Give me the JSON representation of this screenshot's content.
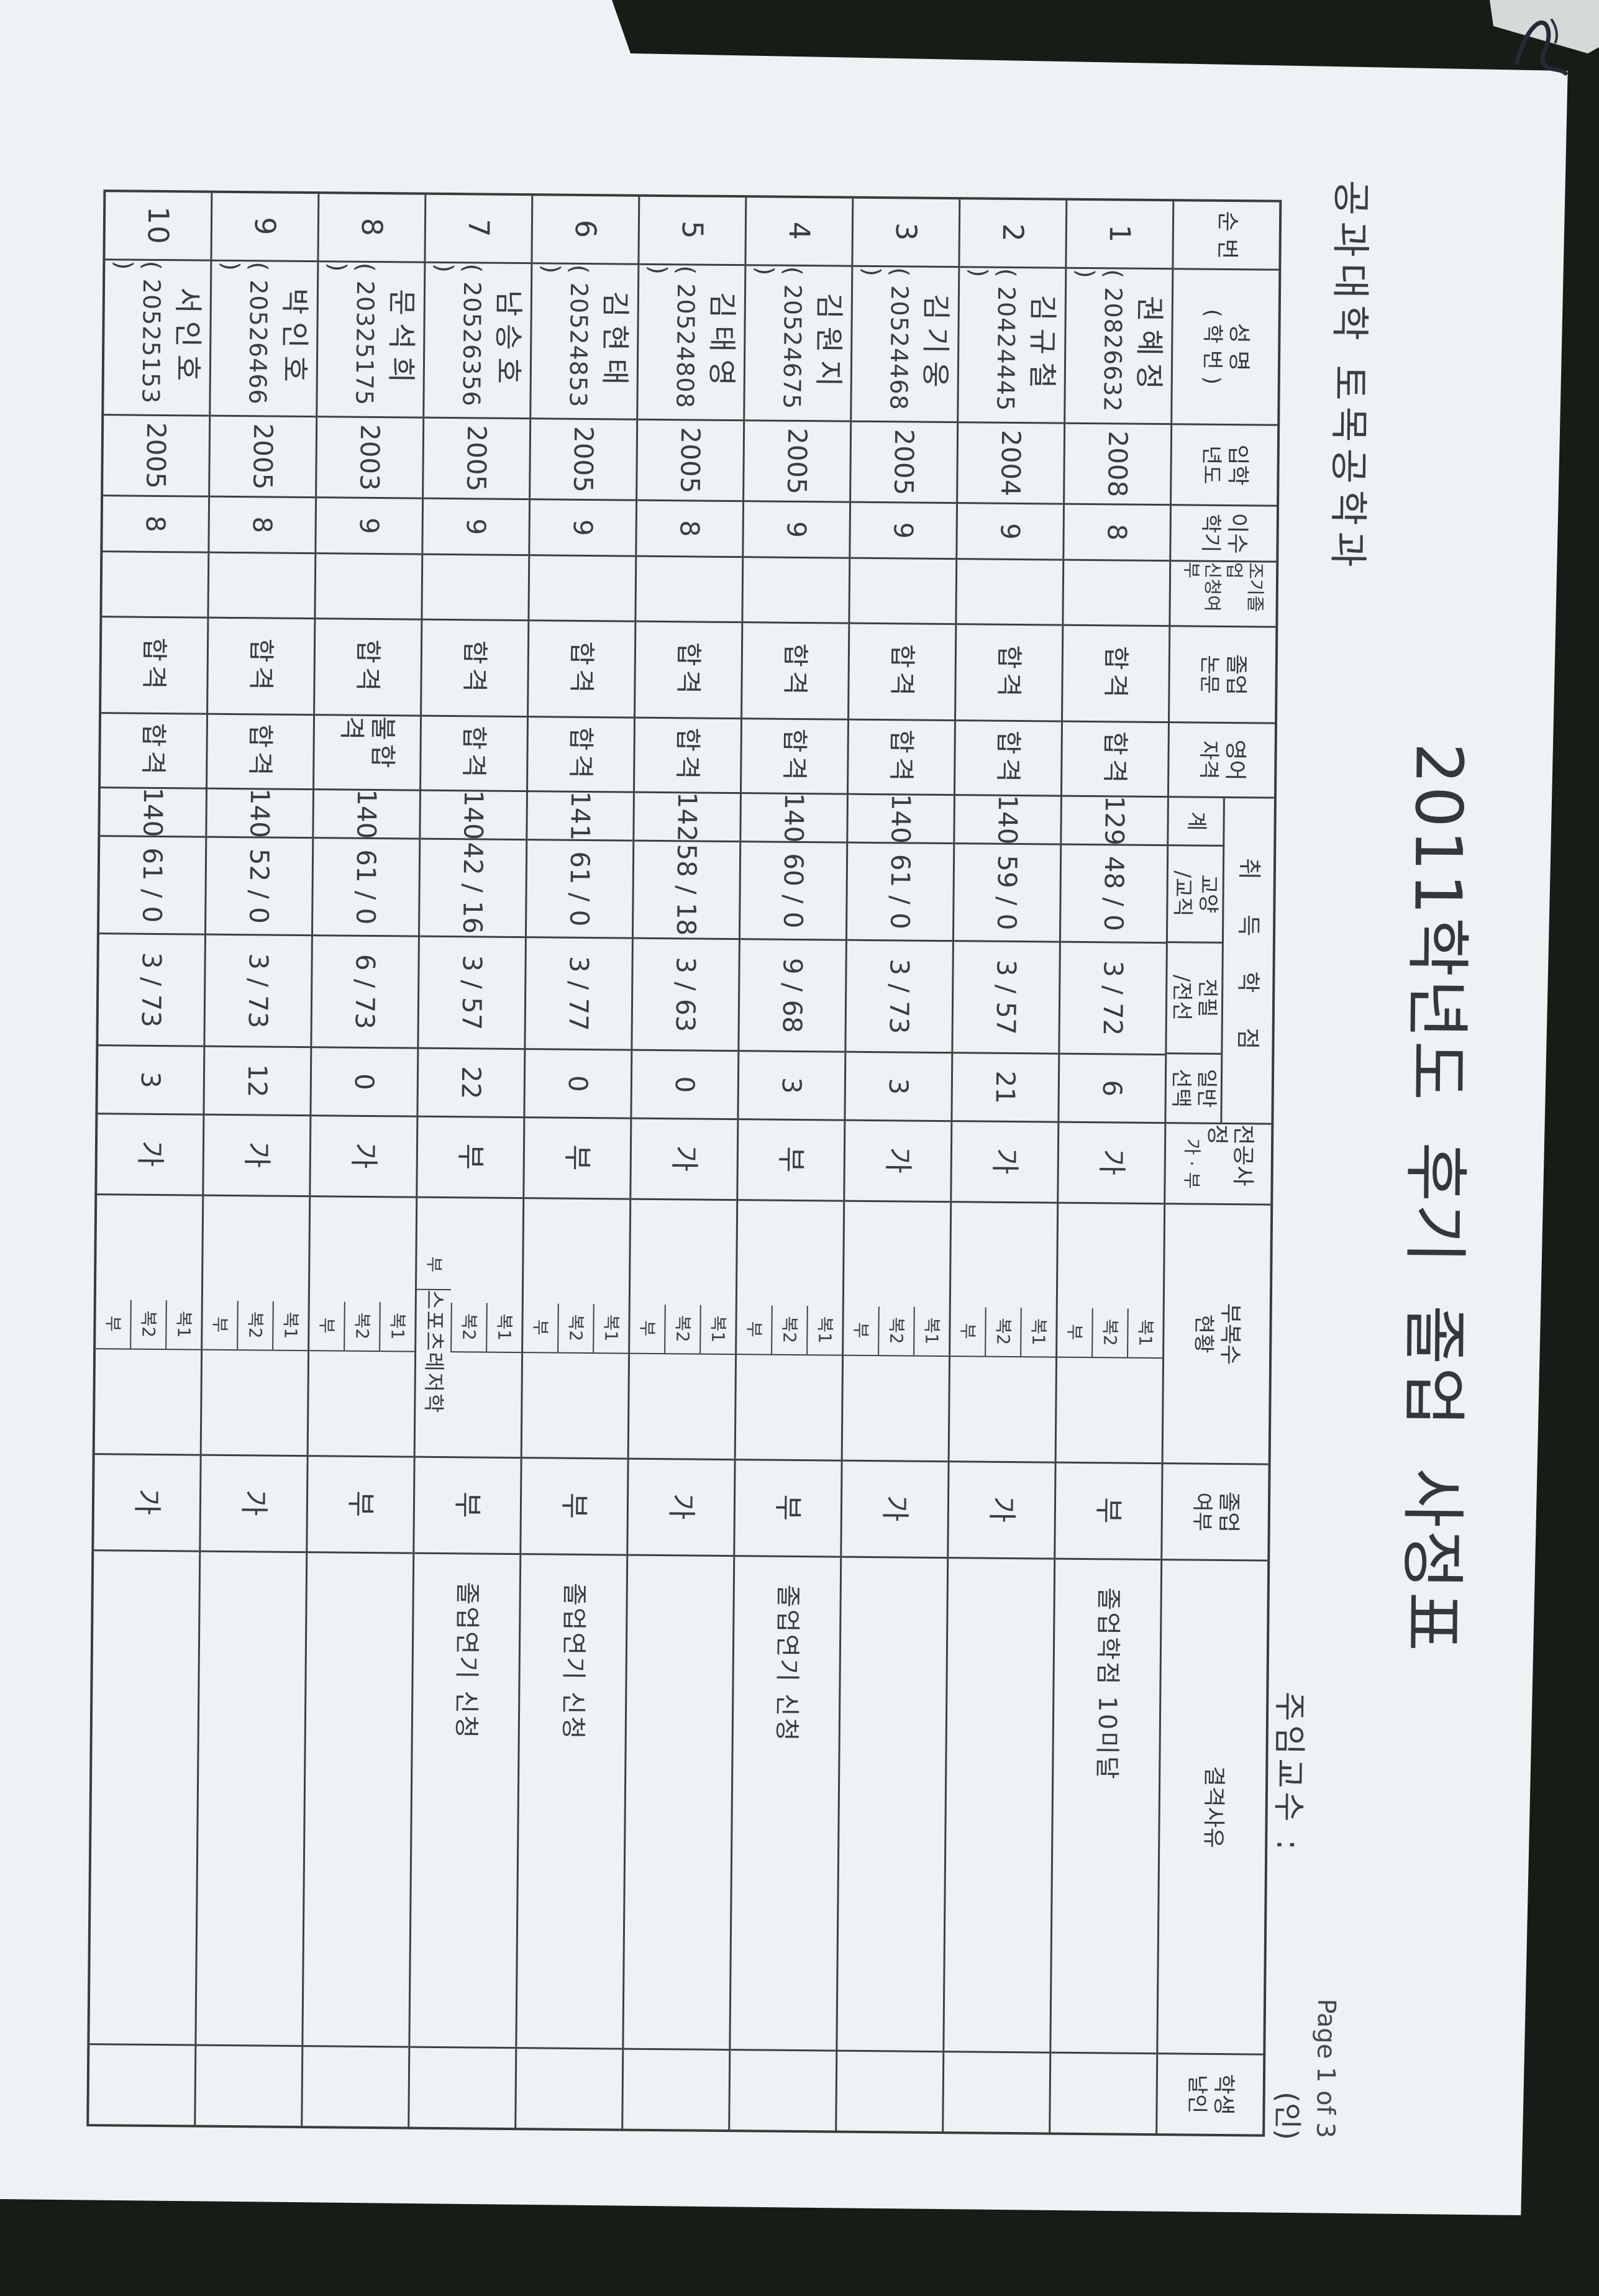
{
  "header": {
    "department": "공과대학  토목공학과",
    "title": "2011학년도 후기  졸업 사정표",
    "advisor_label": "주임교수 :",
    "seal_label": "(인)",
    "page_indicator": "Page 1 of 3"
  },
  "table": {
    "credit_group_label": "취 득 학 점",
    "minor_sub_labels": [
      "복1",
      "복2",
      "부"
    ],
    "columns": [
      {
        "id": "no",
        "label": "순 번"
      },
      {
        "id": "name",
        "label": "성 명",
        "label2": "( 학 번 )"
      },
      {
        "id": "admission_year",
        "label": "입학",
        "label2": "년도"
      },
      {
        "id": "semesters",
        "label": "이수",
        "label2": "학기"
      },
      {
        "id": "early_grad",
        "label": "조기졸업",
        "label2": "신청여부"
      },
      {
        "id": "thesis",
        "label": "졸업",
        "label2": "논문"
      },
      {
        "id": "english",
        "label": "영어",
        "label2": "자격"
      },
      {
        "id": "total",
        "label": "계"
      },
      {
        "id": "liberal",
        "label": "교양",
        "label2": "/교직"
      },
      {
        "id": "major_req",
        "label": "전필",
        "label2": "/전선"
      },
      {
        "id": "elective",
        "label": "일반",
        "label2": "선택"
      },
      {
        "id": "major_assess",
        "label": "전공사정",
        "label2": "가 · 부"
      },
      {
        "id": "minor",
        "label": "부복수",
        "label2": "현황"
      },
      {
        "id": "graduation",
        "label": "졸업",
        "label2": "여부"
      },
      {
        "id": "disqualification",
        "label": "결격사유"
      },
      {
        "id": "student_seal",
        "label": "학생",
        "label2": "날인"
      }
    ],
    "rows": [
      {
        "no": "1",
        "name": "권혜정",
        "student_id": "( 20826632  )",
        "admission_year": "2008",
        "semesters": "8",
        "early_grad": "",
        "thesis": "합격",
        "english": "합격",
        "total": "129",
        "liberal": "48 / 0",
        "major_req": "3 / 72",
        "elective": "6",
        "major_assess": "가",
        "minors": [
          "",
          "",
          ""
        ],
        "graduation": "부",
        "disqualification": "졸업학점 10미달",
        "student_seal": ""
      },
      {
        "no": "2",
        "name": "김규철",
        "student_id": "( 20424445  )",
        "admission_year": "2004",
        "semesters": "9",
        "early_grad": "",
        "thesis": "합격",
        "english": "합격",
        "total": "140",
        "liberal": "59 / 0",
        "major_req": "3 / 57",
        "elective": "21",
        "major_assess": "가",
        "minors": [
          "",
          "",
          ""
        ],
        "graduation": "가",
        "disqualification": "",
        "student_seal": ""
      },
      {
        "no": "3",
        "name": "김기웅",
        "student_id": "( 20524468  )",
        "admission_year": "2005",
        "semesters": "9",
        "early_grad": "",
        "thesis": "합격",
        "english": "합격",
        "total": "140",
        "liberal": "61 / 0",
        "major_req": "3 / 73",
        "elective": "3",
        "major_assess": "가",
        "minors": [
          "",
          "",
          ""
        ],
        "graduation": "가",
        "disqualification": "",
        "student_seal": ""
      },
      {
        "no": "4",
        "name": "김원지",
        "student_id": "( 20524675  )",
        "admission_year": "2005",
        "semesters": "9",
        "early_grad": "",
        "thesis": "합격",
        "english": "합격",
        "total": "140",
        "liberal": "60 / 0",
        "major_req": "9 / 68",
        "elective": "3",
        "major_assess": "부",
        "minors": [
          "",
          "",
          ""
        ],
        "graduation": "부",
        "disqualification": "졸업연기 신청",
        "student_seal": ""
      },
      {
        "no": "5",
        "name": "김태영",
        "student_id": "( 20524808  )",
        "admission_year": "2005",
        "semesters": "8",
        "early_grad": "",
        "thesis": "합격",
        "english": "합격",
        "total": "142",
        "liberal": "58 / 18",
        "major_req": "3 / 63",
        "elective": "0",
        "major_assess": "가",
        "minors": [
          "",
          "",
          ""
        ],
        "graduation": "가",
        "disqualification": "",
        "student_seal": ""
      },
      {
        "no": "6",
        "name": "김현태",
        "student_id": "( 20524853  )",
        "admission_year": "2005",
        "semesters": "9",
        "early_grad": "",
        "thesis": "합격",
        "english": "합격",
        "total": "141",
        "liberal": "61 / 0",
        "major_req": "3 / 77",
        "elective": "0",
        "major_assess": "부",
        "minors": [
          "",
          "",
          ""
        ],
        "graduation": "부",
        "disqualification": "졸업연기 신청",
        "student_seal": ""
      },
      {
        "no": "7",
        "name": "남승호",
        "student_id": "( 20526356  )",
        "admission_year": "2005",
        "semesters": "9",
        "early_grad": "",
        "thesis": "합격",
        "english": "합격",
        "total": "140",
        "liberal": "42 / 16",
        "major_req": "3 / 57",
        "elective": "22",
        "major_assess": "부",
        "minors": [
          "",
          "",
          "스포츠레저학"
        ],
        "graduation": "부",
        "disqualification": "졸업연기 신청",
        "student_seal": ""
      },
      {
        "no": "8",
        "name": "문석희",
        "student_id": "( 20325175  )",
        "admission_year": "2003",
        "semesters": "9",
        "early_grad": "",
        "thesis": "합격",
        "english": "불합격",
        "total": "140",
        "liberal": "61 / 0",
        "major_req": "6 / 73",
        "elective": "0",
        "major_assess": "가",
        "minors": [
          "",
          "",
          ""
        ],
        "graduation": "부",
        "disqualification": "",
        "student_seal": ""
      },
      {
        "no": "9",
        "name": "박인호",
        "student_id": "( 20526466  )",
        "admission_year": "2005",
        "semesters": "8",
        "early_grad": "",
        "thesis": "합격",
        "english": "합격",
        "total": "140",
        "liberal": "52 / 0",
        "major_req": "3 / 73",
        "elective": "12",
        "major_assess": "가",
        "minors": [
          "",
          "",
          ""
        ],
        "graduation": "가",
        "disqualification": "",
        "student_seal": ""
      },
      {
        "no": "10",
        "name": "서인호",
        "student_id": "( 20525153  )",
        "admission_year": "2005",
        "semesters": "8",
        "early_grad": "",
        "thesis": "합격",
        "english": "합격",
        "total": "140",
        "liberal": "61 / 0",
        "major_req": "3 / 73",
        "elective": "3",
        "major_assess": "가",
        "minors": [
          "",
          "",
          ""
        ],
        "graduation": "가",
        "disqualification": "",
        "student_seal": ""
      }
    ]
  }
}
